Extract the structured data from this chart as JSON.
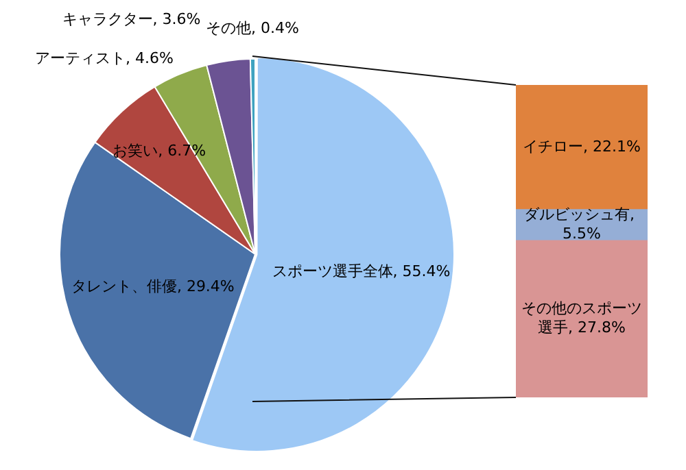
{
  "chart_data": [
    {
      "type": "pie",
      "categories": [
        "スポーツ選手全体",
        "タレント、俳優",
        "お笑い",
        "アーティスト",
        "キャラクター",
        "その他"
      ],
      "values": [
        55.4,
        29.4,
        6.7,
        4.6,
        3.6,
        0.4
      ],
      "value_labels": [
        "55.4%",
        "29.4%",
        "6.7%",
        "4.6%",
        "3.6%",
        "0.4%"
      ],
      "colors": [
        "#9dc8f5",
        "#4a72a8",
        "#b0463f",
        "#8faa4b",
        "#6b5393",
        "#3fa3c0"
      ],
      "legend": false
    },
    {
      "type": "bar",
      "stacked": true,
      "categories": [
        null
      ],
      "tick_labels": false,
      "legend": false,
      "series": [
        {
          "name": "その他のスポーツ選手,",
          "color": "#d99594",
          "values": [
            27.8
          ],
          "value_labels": [
            "27.8%"
          ]
        },
        {
          "name": "ダルビッシュ有,",
          "color": "#95aed6",
          "values": [
            5.5
          ],
          "value_labels": [
            "5.5%"
          ]
        },
        {
          "name": "イチロー,",
          "color": "#e0823d",
          "values": [
            22.1
          ],
          "value_labels": [
            "22.1%"
          ]
        }
      ]
    }
  ]
}
